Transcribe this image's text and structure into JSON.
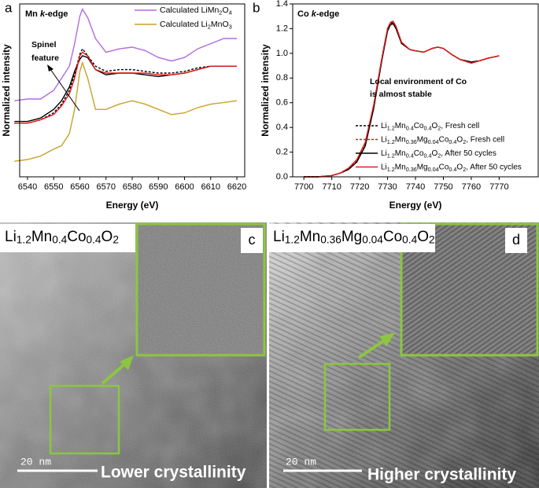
{
  "chart_data": [
    {
      "type": "line",
      "panel_label": "a",
      "title": "Mn k-edge",
      "xlabel": "Energy (eV)",
      "ylabel": "Normalized intensity",
      "annotation": [
        "Spinel",
        "feature"
      ],
      "legend": "upper right",
      "x": [
        6535,
        6540,
        6545,
        6550,
        6553,
        6556,
        6558,
        6560,
        6561,
        6563,
        6566,
        6570,
        6575,
        6580,
        6585,
        6590,
        6595,
        6600,
        6605,
        6610,
        6615,
        6620
      ],
      "xlim": [
        6537,
        6623
      ],
      "xticks": [
        6540,
        6550,
        6560,
        6570,
        6580,
        6590,
        6600,
        6610,
        6620
      ],
      "ylim": [
        0,
        1
      ],
      "series": [
        {
          "name": "Calculated LiMn2O4",
          "color": "#b36ae2",
          "values": [
            0.44,
            0.45,
            0.45,
            0.5,
            0.57,
            0.64,
            0.77,
            0.93,
            0.97,
            0.92,
            0.8,
            0.72,
            0.74,
            0.75,
            0.73,
            0.69,
            0.67,
            0.69,
            0.74,
            0.77,
            0.8,
            0.8
          ]
        },
        {
          "name": "Calculated Li2MnO3",
          "color": "#c9a227",
          "values": [
            0.09,
            0.1,
            0.12,
            0.16,
            0.18,
            0.25,
            0.39,
            0.61,
            0.66,
            0.57,
            0.39,
            0.39,
            0.42,
            0.44,
            0.42,
            0.39,
            0.36,
            0.37,
            0.4,
            0.42,
            0.43,
            0.44
          ]
        },
        {
          "color": "#000000",
          "values": [
            0.32,
            0.32,
            0.34,
            0.39,
            0.44,
            0.52,
            0.61,
            0.68,
            0.7,
            0.69,
            0.62,
            0.59,
            0.6,
            0.6,
            0.59,
            0.58,
            0.59,
            0.6,
            0.62,
            0.64,
            0.64,
            0.64
          ]
        },
        {
          "color": "#000000",
          "dash": true,
          "values": [
            0.31,
            0.31,
            0.33,
            0.37,
            0.42,
            0.5,
            0.59,
            0.71,
            0.74,
            0.7,
            0.64,
            0.61,
            0.62,
            0.62,
            0.61,
            0.6,
            0.6,
            0.61,
            0.63,
            0.64,
            0.64,
            0.64
          ]
        },
        {
          "color": "#e41a1c",
          "values": [
            0.31,
            0.31,
            0.33,
            0.36,
            0.41,
            0.48,
            0.57,
            0.7,
            0.72,
            0.7,
            0.62,
            0.6,
            0.6,
            0.6,
            0.6,
            0.59,
            0.59,
            0.6,
            0.62,
            0.64,
            0.64,
            0.64
          ]
        }
      ]
    },
    {
      "type": "line",
      "panel_label": "b",
      "title": "Co k-edge",
      "xlabel": "Energy (eV)",
      "ylabel": "Normalized intensity",
      "annotation": [
        "Local environment of Co",
        "is almost stable"
      ],
      "legend": "lower right",
      "x": [
        7700,
        7705,
        7710,
        7713,
        7716,
        7719,
        7722,
        7725,
        7728,
        7730,
        7731,
        7732,
        7733,
        7735,
        7738,
        7740,
        7743,
        7746,
        7748,
        7750,
        7753,
        7756,
        7760,
        7763,
        7766,
        7770
      ],
      "xlim": [
        7696,
        7784
      ],
      "xticks": [
        7700,
        7710,
        7720,
        7730,
        7740,
        7750,
        7760,
        7770
      ],
      "ylim": [
        0,
        1.4
      ],
      "yticks": [
        {
          "value": 0,
          "label": "0.0"
        },
        0.2,
        0.4,
        0.6,
        0.8,
        {
          "value": 1,
          "label": "1.0"
        },
        1.2,
        1.4
      ],
      "series": [
        {
          "name": "Li1.2Mn0.4Co0.4O2, Fresh cell",
          "color": "#000000",
          "dash": true,
          "values": [
            0,
            0,
            0.01,
            0.03,
            0.06,
            0.12,
            0.26,
            0.56,
            0.96,
            1.19,
            1.24,
            1.25,
            1.21,
            1.08,
            1.03,
            1.02,
            1.01,
            1.04,
            1.05,
            1.04,
            0.99,
            0.95,
            0.93,
            0.94,
            0.96,
            0.98
          ]
        },
        {
          "name": "Li1.2Mn0.36Mg0.04Co0.4O2, Fresh cell",
          "color": "#e41a1c",
          "dash": true,
          "values": [
            0,
            0,
            0.01,
            0.03,
            0.07,
            0.13,
            0.27,
            0.57,
            0.97,
            1.2,
            1.25,
            1.26,
            1.22,
            1.09,
            1.03,
            1.02,
            1.01,
            1.04,
            1.05,
            1.04,
            0.99,
            0.95,
            0.92,
            0.94,
            0.96,
            0.98
          ]
        },
        {
          "name": "Li1.2Mn0.4Co0.4O2, After 50 cycles",
          "color": "#000000",
          "values": [
            0,
            0,
            0.01,
            0.03,
            0.06,
            0.12,
            0.25,
            0.55,
            0.95,
            1.18,
            1.23,
            1.24,
            1.2,
            1.08,
            1.03,
            1.02,
            1.01,
            1.04,
            1.05,
            1.04,
            0.99,
            0.95,
            0.93,
            0.94,
            0.96,
            0.98
          ]
        },
        {
          "name": "Li1.2Mn0.36Mg0.04Co0.4O2, After 50 cycles",
          "color": "#e41a1c",
          "values": [
            0,
            0,
            0.01,
            0.03,
            0.07,
            0.14,
            0.28,
            0.58,
            0.97,
            1.2,
            1.25,
            1.26,
            1.22,
            1.09,
            1.03,
            1.02,
            1.01,
            1.04,
            1.05,
            1.04,
            0.99,
            0.95,
            0.92,
            0.94,
            0.96,
            0.98
          ]
        }
      ]
    }
  ],
  "images": [
    {
      "panel_label": "c",
      "caption": "Li1.2Mn0.4Co0.4O2",
      "scale_bar": "20 nm",
      "annotation": "Lower crystallinity"
    },
    {
      "panel_label": "d",
      "caption": "Li1.2Mn0.36Mg0.04Co0.4O2",
      "scale_bar": "20 nm",
      "annotation": "Higher crystallinity"
    }
  ]
}
